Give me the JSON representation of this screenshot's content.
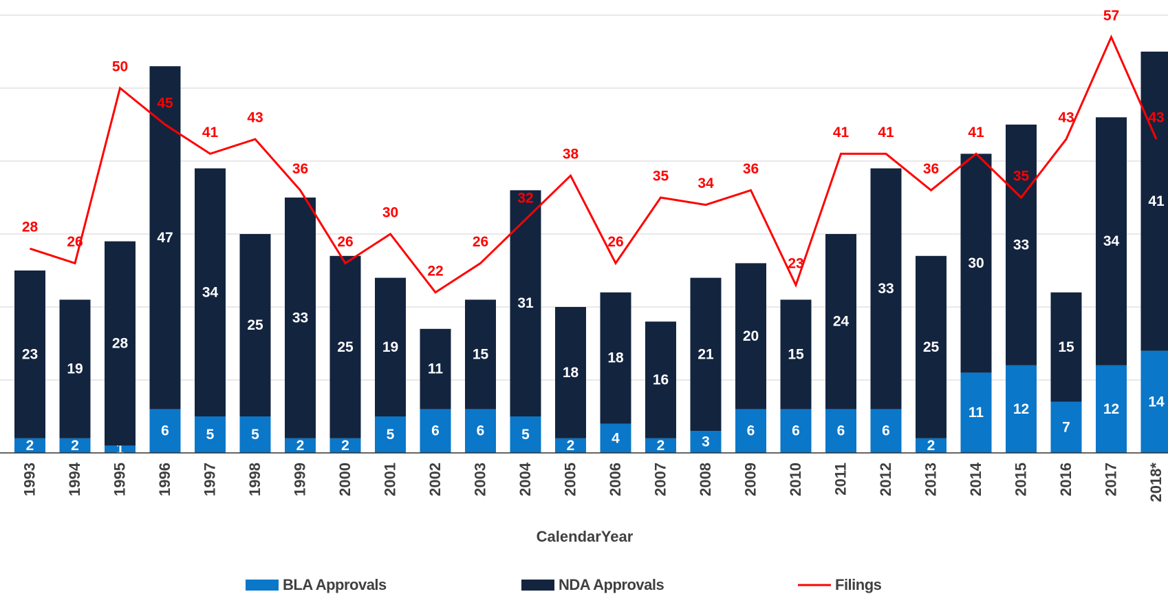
{
  "chart_data": {
    "type": "bar",
    "stacked": true,
    "categories": [
      "1993",
      "1994",
      "1995",
      "1996",
      "1997",
      "1998",
      "1999",
      "2000",
      "2001",
      "2002",
      "2003",
      "2004",
      "2005",
      "2006",
      "2007",
      "2008",
      "2009",
      "2010",
      "2011",
      "2012",
      "2013",
      "2014",
      "2015",
      "2016",
      "2017",
      "2018*"
    ],
    "series": [
      {
        "name": "BLA Approvals",
        "type": "bar",
        "color": "#0a77c9",
        "values": [
          2,
          2,
          1,
          6,
          5,
          5,
          2,
          2,
          5,
          6,
          6,
          5,
          2,
          4,
          2,
          3,
          6,
          6,
          6,
          6,
          2,
          11,
          12,
          7,
          12,
          14
        ]
      },
      {
        "name": "NDA Approvals",
        "type": "bar",
        "color": "#13243f",
        "values": [
          23,
          19,
          28,
          47,
          34,
          25,
          33,
          25,
          19,
          11,
          15,
          31,
          18,
          18,
          16,
          21,
          20,
          15,
          24,
          33,
          25,
          30,
          33,
          15,
          34,
          41
        ]
      },
      {
        "name": "Filings",
        "type": "line",
        "color": "#ff0000",
        "values": [
          28,
          26,
          50,
          45,
          41,
          43,
          36,
          26,
          30,
          22,
          26,
          32,
          38,
          26,
          35,
          34,
          36,
          23,
          41,
          41,
          36,
          41,
          35,
          43,
          57,
          43
        ]
      }
    ],
    "x_label": "CalendarYear",
    "ylim": [
      0,
      60
    ],
    "yticks": [
      0,
      10,
      20,
      30,
      40,
      50,
      60
    ],
    "grid": true,
    "legend": "bottom"
  }
}
